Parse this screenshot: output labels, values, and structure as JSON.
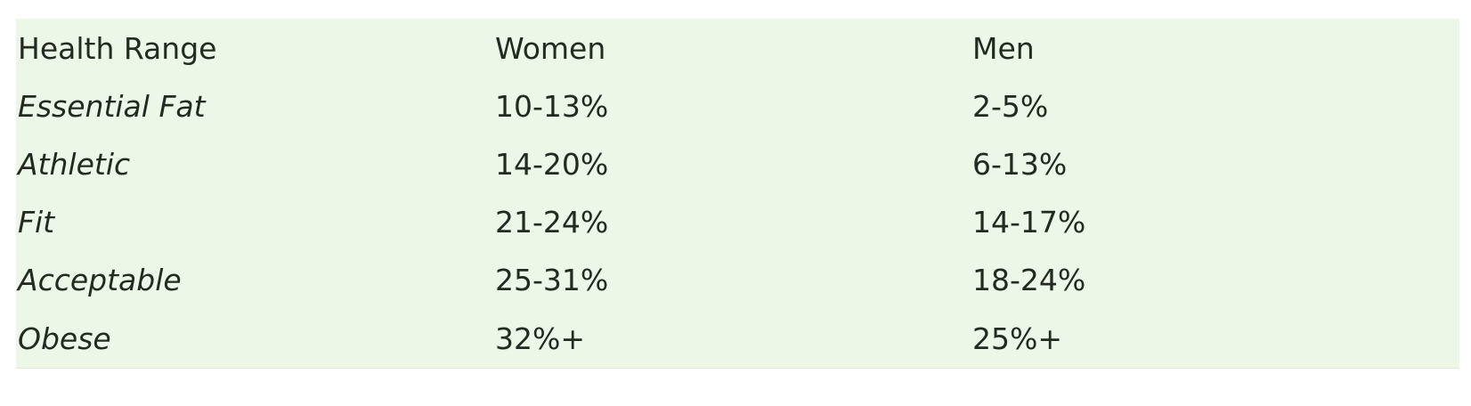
{
  "table": {
    "headers": [
      "Health Range",
      "Women",
      "Men"
    ],
    "rows": [
      {
        "range": "Essential Fat",
        "women": "10-13%",
        "men": "2-5%"
      },
      {
        "range": "Athletic",
        "women": "14-20%",
        "men": "6-13%"
      },
      {
        "range": "Fit",
        "women": "21-24%",
        "men": "14-17%"
      },
      {
        "range": "Acceptable",
        "women": "25-31%",
        "men": "18-24%"
      },
      {
        "range": "Obese",
        "women": "32%+",
        "men": "25%+"
      }
    ]
  },
  "colors": {
    "table_background": "#edf7e7",
    "text": "#222a22"
  }
}
